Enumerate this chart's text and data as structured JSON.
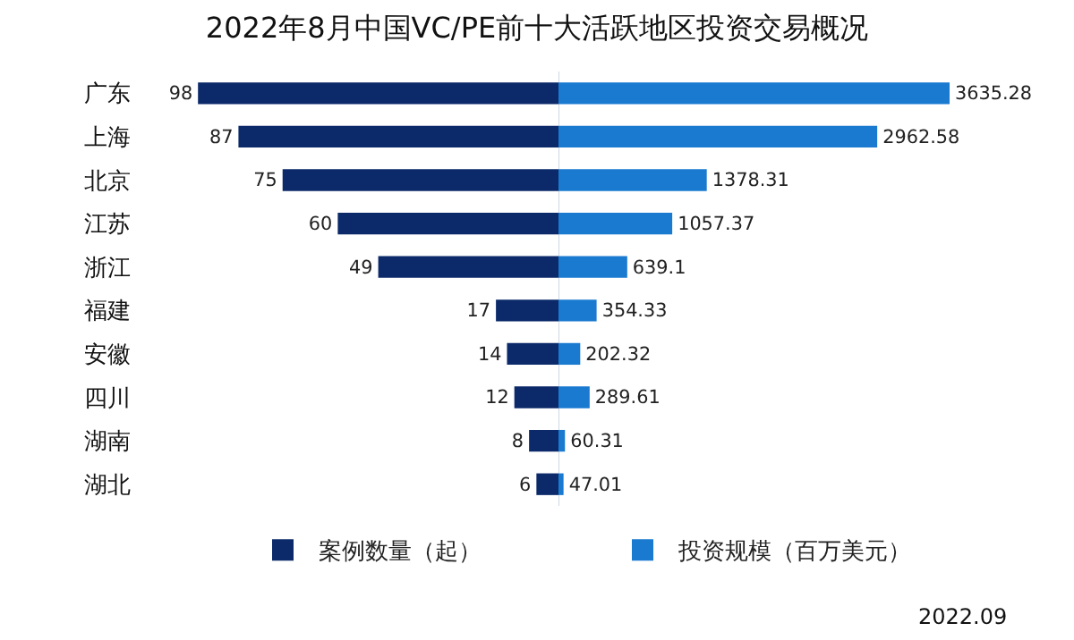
{
  "chart_data": [
    {
      "type": "bar",
      "orientation": "horizontal",
      "title": "2022年8月中国VC/PE前十大活跃地区投资交易概况",
      "categories": [
        "广东",
        "上海",
        "北京",
        "江苏",
        "浙江",
        "福建",
        "安徽",
        "四川",
        "湖南",
        "湖北"
      ],
      "series": [
        {
          "name": "案例数量（起）",
          "color": "#0c2a6a",
          "values": [
            98,
            87,
            75,
            60,
            49,
            17,
            14,
            12,
            8,
            6
          ]
        }
      ],
      "data_labels": true,
      "legend": "bottom",
      "tick_labels": "y"
    },
    {
      "type": "bar",
      "orientation": "horizontal",
      "categories": [
        null,
        null,
        null,
        null,
        null,
        null,
        null,
        null,
        null,
        null
      ],
      "series": [
        {
          "name": "投资规模（百万美元）",
          "color": "#1a7ad0",
          "values": [
            3635.28,
            2962.58,
            1378.31,
            1057.37,
            639.1,
            354.33,
            202.32,
            289.61,
            60.31,
            47.01
          ]
        }
      ],
      "data_labels": true,
      "legend": "bottom",
      "tick_labels": false,
      "annotations": [
        "2022.09"
      ]
    }
  ]
}
